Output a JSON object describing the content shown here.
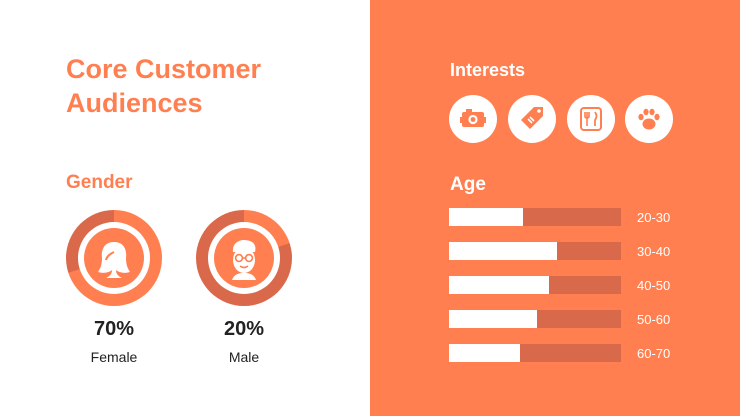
{
  "colors": {
    "accent": "#ff7f50",
    "accent_dark": "#d9694a",
    "bar_track": "#d8694a",
    "white": "#ffffff"
  },
  "title": "Core Customer Audiences",
  "gender": {
    "heading": "Gender",
    "items": [
      {
        "percent": "70%",
        "label": "Female",
        "value": 70,
        "icon": "female-face-icon"
      },
      {
        "percent": "20%",
        "label": "Male",
        "value": 20,
        "icon": "male-face-icon"
      }
    ]
  },
  "interests": {
    "heading": "Interests",
    "icons": [
      "camera-icon",
      "price-tag-icon",
      "utensils-icon",
      "paw-icon"
    ]
  },
  "age": {
    "heading": "Age",
    "bars": [
      {
        "label": "20-30",
        "fraction": 0.43
      },
      {
        "label": "30-40",
        "fraction": 0.63
      },
      {
        "label": "40-50",
        "fraction": 0.58
      },
      {
        "label": "50-60",
        "fraction": 0.51
      },
      {
        "label": "60-70",
        "fraction": 0.41
      }
    ]
  }
}
